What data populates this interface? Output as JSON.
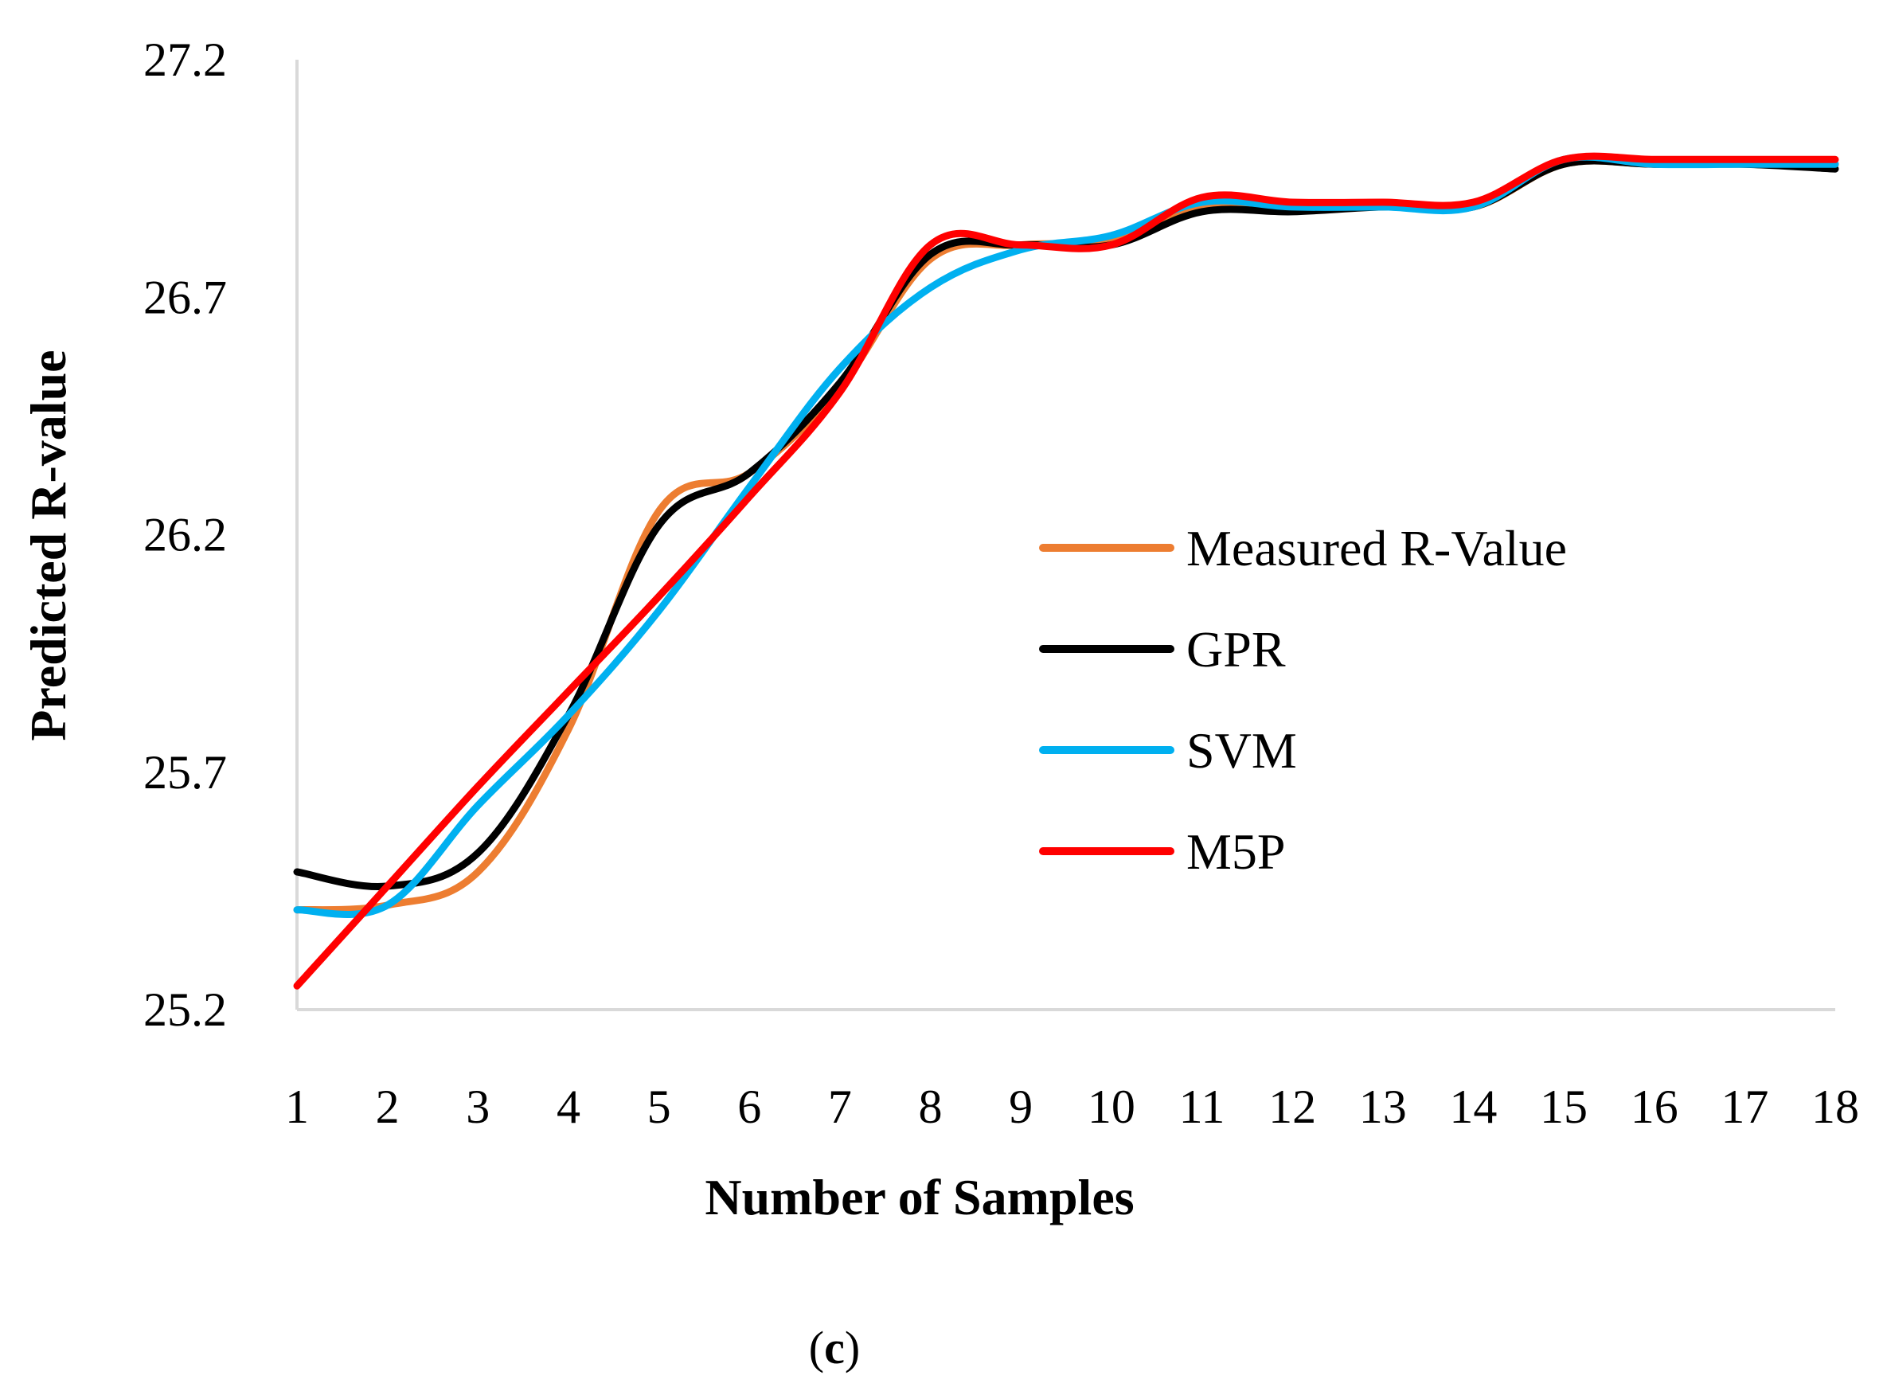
{
  "chart_data": {
    "type": "line",
    "title": "",
    "xlabel": "Number of Samples",
    "ylabel": "Predicted R-value",
    "x": [
      1,
      2,
      3,
      4,
      5,
      6,
      7,
      8,
      9,
      10,
      11,
      12,
      13,
      14,
      15,
      16,
      17,
      18
    ],
    "x_tick_labels": [
      "1",
      "2",
      "3",
      "4",
      "5",
      "6",
      "7",
      "8",
      "9",
      "10",
      "11",
      "12",
      "13",
      "14",
      "15",
      "16",
      "17",
      "18"
    ],
    "y_tick_labels": [
      "25.2",
      "25.7",
      "26.2",
      "26.7",
      "27.2"
    ],
    "ylim": [
      25.2,
      27.2
    ],
    "yticks": [
      25.2,
      25.7,
      26.2,
      26.7,
      27.2
    ],
    "grid": false,
    "legend_position": "right",
    "series": [
      {
        "name": "Measured R-Value",
        "color": "#ED7D31",
        "values": [
          25.41,
          25.42,
          25.49,
          25.79,
          26.25,
          26.33,
          26.51,
          26.78,
          26.81,
          26.82,
          26.89,
          26.89,
          26.9,
          26.89,
          26.98,
          26.98,
          26.98,
          26.98
        ]
      },
      {
        "name": "GPR",
        "color": "#000000",
        "values": [
          25.49,
          25.46,
          25.53,
          25.82,
          26.22,
          26.33,
          26.52,
          26.79,
          26.81,
          26.81,
          26.88,
          26.88,
          26.89,
          26.89,
          26.98,
          26.98,
          26.98,
          26.97
        ]
      },
      {
        "name": "SVM",
        "color": "#00B0F0",
        "values": [
          25.41,
          25.42,
          25.63,
          25.82,
          26.04,
          26.3,
          26.55,
          26.72,
          26.8,
          26.83,
          26.9,
          26.89,
          26.89,
          26.89,
          26.99,
          26.98,
          26.98,
          26.98
        ]
      },
      {
        "name": "M5P",
        "color": "#FF0000",
        "values": [
          25.25,
          25.46,
          25.67,
          25.87,
          26.07,
          26.28,
          26.5,
          26.81,
          26.81,
          26.81,
          26.91,
          26.9,
          26.9,
          26.9,
          26.99,
          26.99,
          26.99,
          26.99
        ]
      }
    ]
  },
  "caption": {
    "open": "(",
    "letter": "c",
    "close": ")"
  }
}
